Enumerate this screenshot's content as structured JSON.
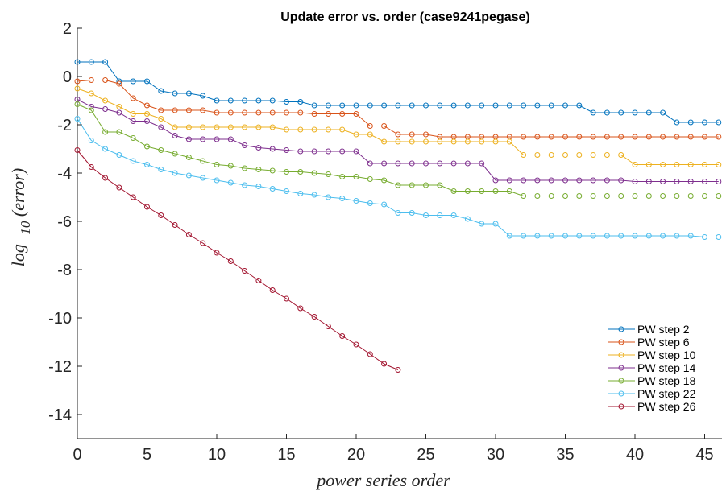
{
  "chart_data": {
    "type": "line",
    "title": "Update error vs. order (case9241pegase)",
    "xlabel": "power series order",
    "ylabel_main": "log",
    "ylabel_sub": "10",
    "ylabel_tail": "(error)",
    "xlim": [
      0,
      46
    ],
    "ylim": [
      -15,
      2
    ],
    "xticks": [
      0,
      5,
      10,
      15,
      20,
      25,
      30,
      35,
      40,
      45
    ],
    "yticks": [
      2,
      0,
      -2,
      -4,
      -6,
      -8,
      -10,
      -12,
      -14
    ],
    "legend_position": "bottom-right",
    "series": [
      {
        "name": "PW step 2",
        "color": "#0072BD",
        "values": [
          0.6,
          0.6,
          0.6,
          -0.2,
          -0.2,
          -0.2,
          -0.6,
          -0.7,
          -0.7,
          -0.8,
          -1.0,
          -1.0,
          -1.0,
          -1.0,
          -1.0,
          -1.05,
          -1.05,
          -1.2,
          -1.2,
          -1.2,
          -1.2,
          -1.2,
          -1.2,
          -1.2,
          -1.2,
          -1.2,
          -1.2,
          -1.2,
          -1.2,
          -1.2,
          -1.2,
          -1.2,
          -1.2,
          -1.2,
          -1.2,
          -1.2,
          -1.2,
          -1.5,
          -1.5,
          -1.5,
          -1.5,
          -1.5,
          -1.5,
          -1.9,
          -1.9,
          -1.9,
          -1.9
        ]
      },
      {
        "name": "PW step 6",
        "color": "#D95319",
        "values": [
          -0.2,
          -0.15,
          -0.15,
          -0.3,
          -0.9,
          -1.2,
          -1.4,
          -1.4,
          -1.4,
          -1.4,
          -1.5,
          -1.5,
          -1.5,
          -1.5,
          -1.5,
          -1.5,
          -1.5,
          -1.55,
          -1.55,
          -1.55,
          -1.55,
          -2.05,
          -2.05,
          -2.4,
          -2.4,
          -2.4,
          -2.5,
          -2.5,
          -2.5,
          -2.5,
          -2.5,
          -2.5,
          -2.5,
          -2.5,
          -2.5,
          -2.5,
          -2.5,
          -2.5,
          -2.5,
          -2.5,
          -2.5,
          -2.5,
          -2.5,
          -2.5,
          -2.5,
          -2.5,
          -2.5
        ]
      },
      {
        "name": "PW step 10",
        "color": "#EDB120",
        "values": [
          -0.5,
          -0.7,
          -1.0,
          -1.25,
          -1.55,
          -1.55,
          -1.75,
          -2.1,
          -2.1,
          -2.1,
          -2.1,
          -2.1,
          -2.1,
          -2.1,
          -2.1,
          -2.2,
          -2.2,
          -2.2,
          -2.2,
          -2.2,
          -2.4,
          -2.4,
          -2.7,
          -2.7,
          -2.7,
          -2.7,
          -2.7,
          -2.7,
          -2.7,
          -2.7,
          -2.7,
          -2.7,
          -3.25,
          -3.25,
          -3.25,
          -3.25,
          -3.25,
          -3.25,
          -3.25,
          -3.25,
          -3.65,
          -3.65,
          -3.65,
          -3.65,
          -3.65,
          -3.65,
          -3.65
        ]
      },
      {
        "name": "PW step 14",
        "color": "#7E2F8E",
        "values": [
          -0.95,
          -1.25,
          -1.35,
          -1.5,
          -1.85,
          -1.85,
          -2.1,
          -2.45,
          -2.6,
          -2.6,
          -2.6,
          -2.6,
          -2.85,
          -2.95,
          -3.0,
          -3.05,
          -3.1,
          -3.1,
          -3.1,
          -3.1,
          -3.1,
          -3.6,
          -3.6,
          -3.6,
          -3.6,
          -3.6,
          -3.6,
          -3.6,
          -3.6,
          -3.6,
          -4.3,
          -4.3,
          -4.3,
          -4.3,
          -4.3,
          -4.3,
          -4.3,
          -4.3,
          -4.3,
          -4.3,
          -4.35,
          -4.35,
          -4.35,
          -4.35,
          -4.35,
          -4.35,
          -4.35
        ]
      },
      {
        "name": "PW step 18",
        "color": "#77AC30",
        "values": [
          -1.15,
          -1.4,
          -2.3,
          -2.3,
          -2.55,
          -2.9,
          -3.05,
          -3.2,
          -3.35,
          -3.5,
          -3.65,
          -3.7,
          -3.8,
          -3.85,
          -3.9,
          -3.95,
          -3.95,
          -4.0,
          -4.05,
          -4.15,
          -4.15,
          -4.25,
          -4.3,
          -4.5,
          -4.5,
          -4.5,
          -4.5,
          -4.75,
          -4.75,
          -4.75,
          -4.75,
          -4.75,
          -4.95,
          -4.95,
          -4.95,
          -4.95,
          -4.95,
          -4.95,
          -4.95,
          -4.95,
          -4.95,
          -4.95,
          -4.95,
          -4.95,
          -4.95,
          -4.95,
          -4.95
        ]
      },
      {
        "name": "PW step 22",
        "color": "#4DBEEE",
        "values": [
          -1.75,
          -2.65,
          -3.0,
          -3.25,
          -3.5,
          -3.65,
          -3.85,
          -4.0,
          -4.1,
          -4.2,
          -4.3,
          -4.4,
          -4.5,
          -4.55,
          -4.65,
          -4.75,
          -4.85,
          -4.9,
          -5.0,
          -5.05,
          -5.15,
          -5.25,
          -5.3,
          -5.65,
          -5.65,
          -5.75,
          -5.75,
          -5.75,
          -5.9,
          -6.1,
          -6.1,
          -6.6,
          -6.6,
          -6.6,
          -6.6,
          -6.6,
          -6.6,
          -6.6,
          -6.6,
          -6.6,
          -6.6,
          -6.6,
          -6.6,
          -6.6,
          -6.6,
          -6.65,
          -6.65
        ]
      },
      {
        "name": "PW step 26",
        "color": "#A2142F",
        "values": [
          -3.05,
          -3.75,
          -4.2,
          -4.6,
          -5.0,
          -5.4,
          -5.75,
          -6.15,
          -6.55,
          -6.9,
          -7.3,
          -7.65,
          -8.05,
          -8.45,
          -8.85,
          -9.2,
          -9.6,
          -9.95,
          -10.35,
          -10.75,
          -11.1,
          -11.5,
          -11.9,
          -12.15
        ]
      }
    ]
  }
}
